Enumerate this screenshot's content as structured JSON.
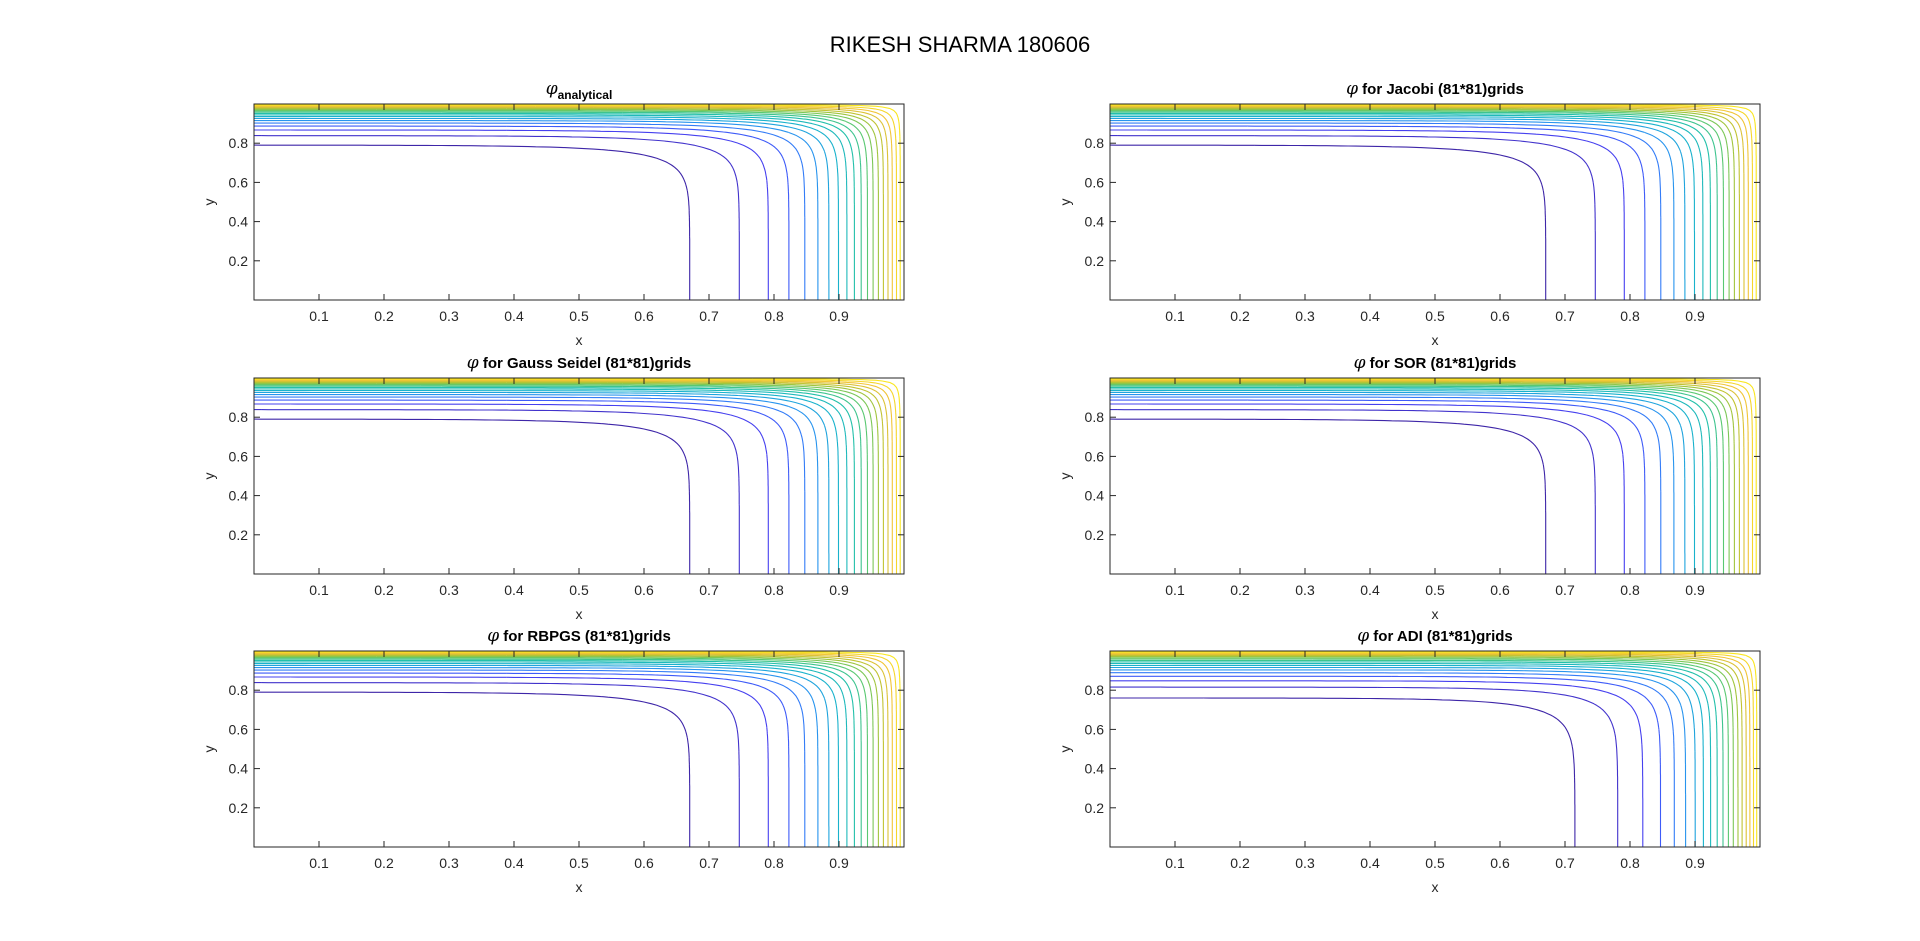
{
  "figure": {
    "title": "RIKESH SHARMA 180606"
  },
  "colors": {
    "axes": "#262626",
    "background": "#ffffff",
    "contour_colormap": [
      "#3e26a8",
      "#4743f8",
      "#2d8cf7",
      "#18b0d0",
      "#23c0aa",
      "#60c96a",
      "#b4c431",
      "#f0c13a",
      "#f9e61f"
    ]
  },
  "chart_data": [
    {
      "type": "contour",
      "title_symbol": "φ",
      "title_subscript": "analytical",
      "title_text": "",
      "xlabel": "x",
      "ylabel": "y",
      "xlim": [
        0,
        1
      ],
      "ylim": [
        0,
        1
      ],
      "xticks": [
        "0.1",
        "0.2",
        "0.3",
        "0.4",
        "0.5",
        "0.6",
        "0.7",
        "0.8",
        "0.9"
      ],
      "yticks": [
        "0.2",
        "0.4",
        "0.6",
        "0.8"
      ],
      "grid": false,
      "variant": "standard"
    },
    {
      "type": "contour",
      "title_symbol": "φ",
      "title_subscript": "",
      "title_text": " for Jacobi (81*81)grids",
      "xlabel": "x",
      "ylabel": "y",
      "xlim": [
        0,
        1
      ],
      "ylim": [
        0,
        1
      ],
      "xticks": [
        "0.1",
        "0.2",
        "0.3",
        "0.4",
        "0.5",
        "0.6",
        "0.7",
        "0.8",
        "0.9"
      ],
      "yticks": [
        "0.2",
        "0.4",
        "0.6",
        "0.8"
      ],
      "grid": false,
      "variant": "standard"
    },
    {
      "type": "contour",
      "title_symbol": "φ",
      "title_subscript": "",
      "title_text": " for Gauss Seidel (81*81)grids",
      "xlabel": "x",
      "ylabel": "y",
      "xlim": [
        0,
        1
      ],
      "ylim": [
        0,
        1
      ],
      "xticks": [
        "0.1",
        "0.2",
        "0.3",
        "0.4",
        "0.5",
        "0.6",
        "0.7",
        "0.8",
        "0.9"
      ],
      "yticks": [
        "0.2",
        "0.4",
        "0.6",
        "0.8"
      ],
      "grid": false,
      "variant": "standard"
    },
    {
      "type": "contour",
      "title_symbol": "φ",
      "title_subscript": "",
      "title_text": " for SOR (81*81)grids",
      "xlabel": "x",
      "ylabel": "y",
      "xlim": [
        0,
        1
      ],
      "ylim": [
        0,
        1
      ],
      "xticks": [
        "0.1",
        "0.2",
        "0.3",
        "0.4",
        "0.5",
        "0.6",
        "0.7",
        "0.8",
        "0.9"
      ],
      "yticks": [
        "0.2",
        "0.4",
        "0.6",
        "0.8"
      ],
      "grid": false,
      "variant": "standard"
    },
    {
      "type": "contour",
      "title_symbol": "φ",
      "title_subscript": "",
      "title_text": " for RBPGS (81*81)grids",
      "xlabel": "x",
      "ylabel": "y",
      "xlim": [
        0,
        1
      ],
      "ylim": [
        0,
        1
      ],
      "xticks": [
        "0.1",
        "0.2",
        "0.3",
        "0.4",
        "0.5",
        "0.6",
        "0.7",
        "0.8",
        "0.9"
      ],
      "yticks": [
        "0.2",
        "0.4",
        "0.6",
        "0.8"
      ],
      "grid": false,
      "variant": "standard"
    },
    {
      "type": "contour",
      "title_symbol": "φ",
      "title_subscript": "",
      "title_text": " for ADI (81*81)grids",
      "xlabel": "x",
      "ylabel": "y",
      "xlim": [
        0,
        1
      ],
      "ylim": [
        0,
        1
      ],
      "xticks": [
        "0.1",
        "0.2",
        "0.3",
        "0.4",
        "0.5",
        "0.6",
        "0.7",
        "0.8",
        "0.9"
      ],
      "yticks": [
        "0.2",
        "0.4",
        "0.6",
        "0.8"
      ],
      "grid": false,
      "variant": "adi"
    }
  ]
}
